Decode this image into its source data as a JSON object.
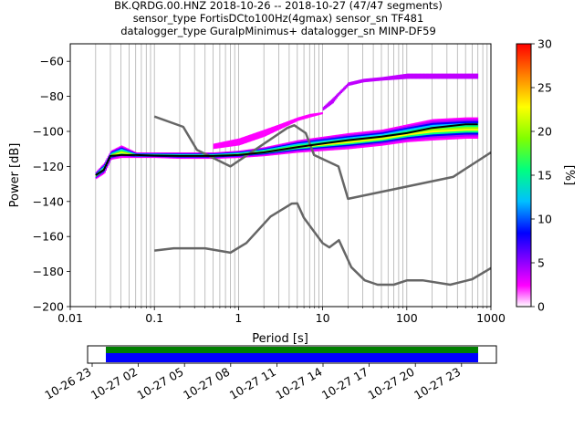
{
  "title_lines": [
    "BK.QRDG.00.HNZ   2018-10-26 -- 2018-10-27  (47/47 segments)",
    "sensor_type FortisDCto100Hz(4gmax) sensor_sn TF481",
    "datalogger_type GuralpMinimus+ datalogger_sn MINP-DF59"
  ],
  "chart_data": {
    "type": "heatmap",
    "xlabel": "Period [s]",
    "ylabel": "Power [dB]",
    "xscale": "log",
    "xlim": [
      0.01,
      1000
    ],
    "ylim": [
      -200,
      -50
    ],
    "x_ticks": [
      0.01,
      0.1,
      1,
      10,
      100,
      1000
    ],
    "x_tick_labels": [
      "0.01",
      "0.1",
      "1",
      "10",
      "100",
      "1000"
    ],
    "y_ticks": [
      -200,
      -180,
      -160,
      -140,
      -120,
      -100,
      -80,
      -60
    ],
    "y_tick_labels": [
      "−200",
      "−180",
      "−160",
      "−140",
      "−120",
      "−100",
      "−80",
      "−60"
    ],
    "grid": "vertical",
    "colorbar": {
      "label": "[%]",
      "min": 0,
      "max": 30,
      "ticks": [
        0,
        5,
        10,
        15,
        20,
        25,
        30
      ],
      "tick_labels": [
        "0",
        "5",
        "10",
        "15",
        "20",
        "25",
        "30"
      ],
      "colormap": [
        "#ffffff",
        "#ff00ff",
        "#8000ff",
        "#0000ff",
        "#00c0ff",
        "#00ff80",
        "#80ff00",
        "#ffff00",
        "#ff8000",
        "#ff0000"
      ]
    },
    "mean_curve": {
      "color": "#000000",
      "x": [
        0.02,
        0.025,
        0.03,
        0.04,
        0.06,
        0.1,
        0.2,
        0.5,
        1,
        2,
        5,
        10,
        20,
        50,
        100,
        200,
        500,
        700
      ],
      "y": [
        -125,
        -122,
        -114,
        -113.5,
        -113.5,
        -113.8,
        -114,
        -114,
        -113.5,
        -112,
        -109,
        -107,
        -105,
        -103,
        -101,
        -98,
        -96,
        -96
      ]
    },
    "noise_model_high": {
      "color": "#666666",
      "x": [
        0.1,
        0.22,
        0.32,
        0.8,
        3.8,
        4.6,
        6.3,
        7.9,
        15.4,
        20,
        354.8,
        1000
      ],
      "y": [
        -91.5,
        -97.4,
        -110.5,
        -120,
        -98,
        -96.5,
        -101,
        -113.5,
        -120,
        -138.5,
        -126,
        -112
      ]
    },
    "noise_model_low": {
      "color": "#666666",
      "x": [
        0.1,
        0.17,
        0.4,
        0.8,
        1.24,
        2.4,
        4.3,
        5,
        6,
        10,
        12,
        15.6,
        21.9,
        31.6,
        45,
        70,
        101,
        154,
        328,
        600,
        1000
      ],
      "y": [
        -168,
        -166.7,
        -166.7,
        -169.2,
        -163.7,
        -148.6,
        -141.2,
        -141.1,
        -149.4,
        -163.8,
        -166.2,
        -162.1,
        -177.5,
        -185,
        -187.5,
        -187.5,
        -185,
        -185,
        -187.5,
        -184.4,
        -178
      ]
    },
    "psd_bands": [
      {
        "name": "main",
        "x": [
          0.02,
          0.025,
          0.03,
          0.04,
          0.06,
          0.1,
          0.2,
          0.5,
          1,
          2,
          5,
          10,
          20,
          50,
          100,
          200,
          500,
          700
        ],
        "y_low": [
          -127,
          -124,
          -116,
          -115,
          -115,
          -115,
          -115.5,
          -115.5,
          -115,
          -114,
          -112,
          -111,
          -110,
          -108,
          -106,
          -105,
          -104,
          -104
        ],
        "y_high": [
          -123,
          -118,
          -111,
          -108,
          -112,
          -112,
          -112,
          -112,
          -111,
          -109,
          -105,
          -103,
          -101,
          -99,
          -96,
          -93,
          -92,
          -92
        ]
      },
      {
        "name": "upper",
        "x": [
          0.5,
          1,
          2,
          3,
          5,
          7,
          10
        ],
        "y_low": [
          -110,
          -108,
          -103,
          -99,
          -94,
          -92,
          -90
        ],
        "y_high": [
          -107,
          -104,
          -99,
          -96,
          -92,
          -90,
          -89
        ]
      },
      {
        "name": "top",
        "x": [
          10,
          13,
          15,
          20,
          30,
          50,
          100,
          200,
          700
        ],
        "y_low": [
          -88,
          -84,
          -80,
          -74,
          -72,
          -71,
          -70,
          -70,
          -70
        ],
        "y_high": [
          -86,
          -81,
          -78,
          -72,
          -70,
          -69,
          -67,
          -67,
          -67
        ]
      }
    ],
    "timeline": {
      "tick_labels": [
        "10-26 23",
        "10-27 02",
        "10-27 05",
        "10-27 08",
        "10-27 11",
        "10-27 14",
        "10-27 17",
        "10-27 20",
        "10-27 23"
      ],
      "coverage_colors": [
        "#008000",
        "#0000ff"
      ]
    }
  }
}
